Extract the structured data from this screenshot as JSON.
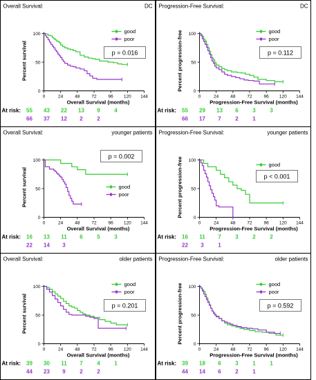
{
  "colors": {
    "good": "#33cc33",
    "poor": "#9933cc",
    "border": "#000000"
  },
  "x_ticks": [
    0,
    24,
    48,
    72,
    96,
    120,
    144
  ],
  "y_ticks": [
    0,
    50,
    100
  ],
  "at_risk_label": "At risk:",
  "chart_data": [
    {
      "type": "line",
      "row": 0,
      "col": 0,
      "title_left": "Overall Survival:",
      "title_right": "DC",
      "xlabel": "Overall Survival (months)",
      "ylabel": "Percent survival",
      "xlim": [
        0,
        144
      ],
      "ylim": [
        0,
        100
      ],
      "pvalue": "p = 0.016",
      "series": [
        {
          "name": "good",
          "x": [
            0,
            3,
            6,
            9,
            12,
            14,
            16,
            18,
            20,
            22,
            24,
            27,
            30,
            34,
            38,
            42,
            46,
            52,
            58,
            64,
            70,
            74,
            80,
            86,
            92,
            100,
            106,
            112,
            120
          ],
          "y": [
            100,
            99,
            97,
            96,
            93,
            91,
            89,
            87,
            86,
            84,
            80,
            77,
            75,
            73,
            72,
            70,
            68,
            62,
            59,
            57,
            56,
            55,
            52,
            52,
            50,
            49,
            47,
            46,
            46
          ]
        },
        {
          "name": "poor",
          "x": [
            0,
            2,
            4,
            6,
            8,
            10,
            12,
            14,
            16,
            18,
            20,
            22,
            24,
            26,
            28,
            30,
            34,
            38,
            42,
            46,
            52,
            58,
            62,
            66,
            70,
            76,
            84,
            96,
            112
          ],
          "y": [
            100,
            96,
            93,
            89,
            85,
            81,
            78,
            75,
            71,
            68,
            64,
            61,
            58,
            54,
            51,
            48,
            45,
            43,
            42,
            40,
            38,
            35,
            30,
            26,
            22,
            20,
            20,
            20,
            20
          ]
        }
      ],
      "at_risk": {
        "good": [
          55,
          43,
          22,
          13,
          9,
          4
        ],
        "poor": [
          66,
          37,
          12,
          2,
          2
        ]
      }
    },
    {
      "type": "line",
      "row": 0,
      "col": 1,
      "title_left": "Progression-Free Survival:",
      "title_right": "DC",
      "xlabel": "Progression-Free Survival (months)",
      "ylabel": "Percent progression-free",
      "xlim": [
        0,
        144
      ],
      "ylim": [
        0,
        100
      ],
      "pvalue": "p = 0.112",
      "series": [
        {
          "name": "good",
          "x": [
            0,
            2,
            4,
            6,
            8,
            10,
            12,
            14,
            16,
            18,
            20,
            22,
            24,
            28,
            32,
            36,
            40,
            46,
            54,
            60,
            66,
            72,
            78,
            84,
            96,
            108,
            120
          ],
          "y": [
            100,
            98,
            95,
            90,
            87,
            81,
            75,
            69,
            63,
            57,
            54,
            49,
            45,
            42,
            39,
            37,
            35,
            33,
            32,
            31,
            29,
            27,
            24,
            20,
            18,
            16,
            16
          ]
        },
        {
          "name": "poor",
          "x": [
            0,
            2,
            4,
            6,
            8,
            10,
            12,
            14,
            16,
            18,
            20,
            22,
            24,
            28,
            32,
            36,
            40,
            46,
            52,
            58,
            64,
            70,
            78,
            86,
            96,
            108
          ],
          "y": [
            100,
            96,
            91,
            86,
            81,
            76,
            70,
            64,
            58,
            52,
            48,
            43,
            40,
            37,
            33,
            29,
            27,
            25,
            23,
            21,
            19,
            18,
            17,
            12,
            12,
            12
          ]
        }
      ],
      "at_risk": {
        "good": [
          55,
          29,
          13,
          6,
          3,
          3
        ],
        "poor": [
          66,
          17,
          7,
          2,
          1
        ]
      }
    },
    {
      "type": "line",
      "row": 1,
      "col": 0,
      "title_left": "Overall Survival:",
      "title_right": "younger patients",
      "xlabel": "Overall Survival (months)",
      "ylabel": "Percent survival",
      "xlim": [
        0,
        144
      ],
      "ylim": [
        0,
        100
      ],
      "pvalue": "p = 0.002",
      "series": [
        {
          "name": "good",
          "x": [
            0,
            22,
            24,
            36,
            40,
            48,
            60,
            72,
            84,
            96,
            108,
            120
          ],
          "y": [
            100,
            100,
            94,
            94,
            88,
            83,
            75,
            75,
            75,
            75,
            75,
            75
          ]
        },
        {
          "name": "poor",
          "x": [
            0,
            2,
            6,
            8,
            12,
            14,
            16,
            18,
            20,
            22,
            24,
            26,
            28,
            30,
            32,
            34,
            36,
            38,
            40,
            42,
            48,
            54
          ],
          "y": [
            100,
            88,
            88,
            84,
            84,
            82,
            80,
            77,
            75,
            72,
            70,
            66,
            62,
            58,
            52,
            45,
            38,
            33,
            28,
            23,
            23,
            23
          ]
        }
      ],
      "at_risk": {
        "good": [
          16,
          13,
          11,
          6,
          5,
          3
        ],
        "poor": [
          22,
          14,
          3
        ]
      }
    },
    {
      "type": "line",
      "row": 1,
      "col": 1,
      "title_left": "Progression-Free Survival:",
      "title_right": "younger patients",
      "xlabel": "Progression-Free Survival (months)",
      "ylabel": "Percent progression-free",
      "xlim": [
        0,
        144
      ],
      "ylim": [
        0,
        100
      ],
      "pvalue": "p < 0.001",
      "series": [
        {
          "name": "good",
          "x": [
            0,
            6,
            12,
            18,
            24,
            30,
            36,
            42,
            48,
            54,
            60,
            66,
            72,
            84,
            96,
            108,
            120
          ],
          "y": [
            100,
            94,
            88,
            88,
            82,
            75,
            69,
            62,
            56,
            50,
            47,
            40,
            25,
            25,
            25,
            25,
            25
          ]
        },
        {
          "name": "poor",
          "x": [
            0,
            2,
            4,
            6,
            8,
            10,
            12,
            14,
            16,
            18,
            20,
            22,
            24,
            28,
            32,
            36,
            40,
            44,
            48
          ],
          "y": [
            100,
            95,
            90,
            82,
            76,
            70,
            62,
            55,
            48,
            42,
            36,
            30,
            20,
            18,
            18,
            18,
            18,
            18,
            0
          ]
        }
      ],
      "at_risk": {
        "good": [
          16,
          11,
          7,
          3,
          2,
          2
        ],
        "poor": [
          22,
          3,
          1
        ]
      }
    },
    {
      "type": "line",
      "row": 2,
      "col": 0,
      "title_left": "Overall Survival:",
      "title_right": "older patients",
      "xlabel": "Overall Survival (months)",
      "ylabel": "Percent survival",
      "xlim": [
        0,
        144
      ],
      "ylim": [
        0,
        100
      ],
      "pvalue": "p = 0.201",
      "series": [
        {
          "name": "good",
          "x": [
            0,
            4,
            8,
            12,
            16,
            20,
            24,
            28,
            32,
            36,
            40,
            44,
            48,
            52,
            56,
            60,
            66,
            72,
            80,
            88,
            96,
            104,
            112,
            120
          ],
          "y": [
            100,
            98,
            95,
            91,
            87,
            83,
            79,
            74,
            70,
            66,
            64,
            62,
            58,
            55,
            52,
            50,
            48,
            46,
            42,
            39,
            36,
            33,
            33,
            33
          ]
        },
        {
          "name": "poor",
          "x": [
            0,
            4,
            8,
            12,
            16,
            20,
            24,
            28,
            32,
            36,
            40,
            44,
            48,
            52,
            56,
            60,
            66,
            72,
            78,
            84,
            90,
            96,
            108,
            118
          ],
          "y": [
            100,
            95,
            90,
            84,
            78,
            72,
            66,
            60,
            55,
            51,
            50,
            50,
            50,
            50,
            50,
            48,
            46,
            44,
            27,
            27,
            27,
            27,
            27,
            27
          ]
        }
      ],
      "at_risk": {
        "good": [
          39,
          30,
          11,
          7,
          4,
          1
        ],
        "poor": [
          44,
          23,
          9,
          2,
          2
        ]
      }
    },
    {
      "type": "line",
      "row": 2,
      "col": 1,
      "title_left": "Progression-Free Survival:",
      "title_right": "older patients",
      "xlabel": "Progression-Free Survival (months)",
      "ylabel": "Percent progression-free",
      "xlim": [
        0,
        144
      ],
      "ylim": [
        0,
        100
      ],
      "pvalue": "p = 0.592",
      "series": [
        {
          "name": "good",
          "x": [
            0,
            2,
            4,
            6,
            8,
            10,
            12,
            14,
            16,
            18,
            20,
            22,
            24,
            28,
            32,
            36,
            40,
            46,
            52,
            58,
            64,
            72,
            80,
            90,
            100,
            110,
            120
          ],
          "y": [
            100,
            97,
            94,
            91,
            86,
            80,
            74,
            68,
            62,
            57,
            54,
            51,
            48,
            44,
            40,
            36,
            33,
            31,
            29,
            27,
            25,
            23,
            21,
            20,
            18,
            15,
            15
          ]
        },
        {
          "name": "poor",
          "x": [
            0,
            2,
            4,
            6,
            8,
            10,
            12,
            14,
            16,
            18,
            20,
            22,
            24,
            28,
            32,
            36,
            40,
            44,
            48,
            54,
            60,
            68,
            76,
            84,
            96,
            108,
            116
          ],
          "y": [
            100,
            97,
            92,
            87,
            82,
            77,
            72,
            67,
            62,
            57,
            53,
            50,
            47,
            44,
            40,
            38,
            36,
            34,
            32,
            30,
            28,
            27,
            26,
            24,
            20,
            18,
            18
          ]
        }
      ],
      "at_risk": {
        "good": [
          39,
          18,
          6,
          3,
          1,
          1
        ],
        "poor": [
          44,
          14,
          6,
          2,
          1
        ]
      }
    }
  ]
}
